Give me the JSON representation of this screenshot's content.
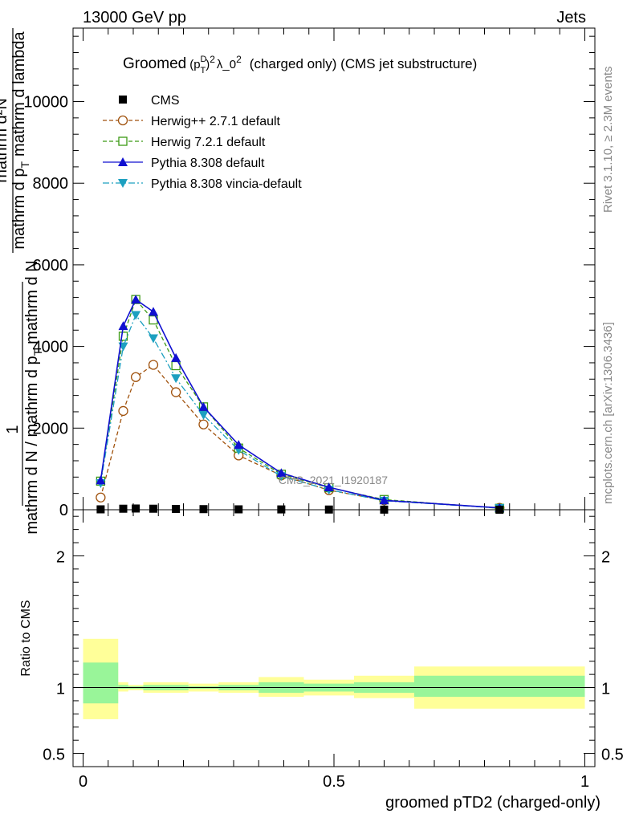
{
  "header": {
    "left": "13000 GeV pp",
    "right": "Jets"
  },
  "side": {
    "rivet": "Rivet 3.1.10, ≥ 2.3M events",
    "mcplots": "mcplots.cern.ch [arXiv:1306.3436]"
  },
  "main": {
    "title_prefix": "Groomed",
    "title_p": "p",
    "title_D": "D",
    "title_T": "T",
    "title_exp": "2",
    "title_rest": "λ_0",
    "title_rest_exp": "2",
    "title_suffix": "(charged only) (CMS jet substructure)",
    "watermark": "CMS_2021_I1920187",
    "ylabel_one": "1",
    "ylabel_den1": "mathrm d N / mathrm d p",
    "ylabel_den1_sub": "T",
    "ylabel_den2": "mathrm d N",
    "ylabel_num": "mathrm d²N",
    "ylabel_num2": "mathrm d p",
    "ylabel_num2_sub": "T",
    "ylabel_num3": "mathrm d lambda"
  },
  "ratio": {
    "ylabel": "Ratio to CMS"
  },
  "xaxis_label": "groomed pTD2 (charged-only)",
  "legend": [
    {
      "name": "CMS",
      "color": "#000000",
      "marker": "square-filled",
      "style": "none"
    },
    {
      "name": "Herwig++ 2.7.1 default",
      "color": "#a0520d",
      "marker": "circle-open",
      "style": "dashed"
    },
    {
      "name": "Herwig 7.2.1 default",
      "color": "#3c9a14",
      "marker": "square-open",
      "style": "dashed"
    },
    {
      "name": "Pythia 8.308 default",
      "color": "#1010d0",
      "marker": "triangle-up",
      "style": "solid"
    },
    {
      "name": "Pythia 8.308 vincia-default",
      "color": "#1da0c0",
      "marker": "triangle-down",
      "style": "dashdot"
    }
  ],
  "chart_data": {
    "type": "line",
    "x": [
      0.035,
      0.08,
      0.105,
      0.14,
      0.185,
      0.24,
      0.31,
      0.395,
      0.49,
      0.6,
      0.83
    ],
    "xlim": [
      -0.02,
      1.02
    ],
    "xticks": [
      0,
      0.5,
      1
    ],
    "xtick_labels": [
      "0",
      "0.5",
      "1"
    ],
    "main_ylim": [
      0,
      11800
    ],
    "main_yticks": [
      0,
      2000,
      4000,
      6000,
      8000,
      10000
    ],
    "main_ytick_labels": [
      "0",
      "2000",
      "4000",
      "6000",
      "8000",
      "10000"
    ],
    "series": [
      {
        "name": "CMS",
        "values": [
          10,
          25,
          30,
          25,
          20,
          15,
          10,
          8,
          5,
          3,
          1
        ]
      },
      {
        "name": "Herwig++ 2.7.1 default",
        "values": [
          300,
          2420,
          3250,
          3550,
          2880,
          2090,
          1330,
          840,
          480,
          230,
          45
        ]
      },
      {
        "name": "Herwig 7.2.1 default",
        "values": [
          700,
          4250,
          5150,
          4650,
          3530,
          2520,
          1510,
          870,
          540,
          250,
          35
        ]
      },
      {
        "name": "Pythia 8.308 default",
        "values": [
          720,
          4500,
          5150,
          4850,
          3720,
          2520,
          1590,
          900,
          550,
          230,
          45
        ]
      },
      {
        "name": "Pythia 8.308 vincia-default",
        "values": [
          650,
          4000,
          4770,
          4200,
          3220,
          2320,
          1460,
          820,
          490,
          220,
          40
        ]
      }
    ],
    "ratio_ylim": [
      0.4,
      2.35
    ],
    "ratio_yticks": [
      0.5,
      1,
      2
    ],
    "ratio_ytick_labels": [
      "0.5",
      "1",
      "2"
    ],
    "ratio_bands": [
      {
        "x0": 0.0,
        "x1": 0.07,
        "stat_lo": 0.88,
        "stat_hi": 1.19,
        "tot_lo": 0.76,
        "tot_hi": 1.37
      },
      {
        "x0": 0.07,
        "x1": 0.09,
        "stat_lo": 0.99,
        "stat_hi": 1.02,
        "tot_lo": 0.97,
        "tot_hi": 1.04
      },
      {
        "x0": 0.09,
        "x1": 0.12,
        "stat_lo": 0.99,
        "stat_hi": 1.01,
        "tot_lo": 0.98,
        "tot_hi": 1.02
      },
      {
        "x0": 0.12,
        "x1": 0.16,
        "stat_lo": 0.98,
        "stat_hi": 1.02,
        "tot_lo": 0.96,
        "tot_hi": 1.04
      },
      {
        "x0": 0.16,
        "x1": 0.21,
        "stat_lo": 0.98,
        "stat_hi": 1.02,
        "tot_lo": 0.96,
        "tot_hi": 1.04
      },
      {
        "x0": 0.21,
        "x1": 0.27,
        "stat_lo": 0.99,
        "stat_hi": 1.01,
        "tot_lo": 0.97,
        "tot_hi": 1.03
      },
      {
        "x0": 0.27,
        "x1": 0.35,
        "stat_lo": 0.98,
        "stat_hi": 1.02,
        "tot_lo": 0.96,
        "tot_hi": 1.04
      },
      {
        "x0": 0.35,
        "x1": 0.44,
        "stat_lo": 0.96,
        "stat_hi": 1.04,
        "tot_lo": 0.93,
        "tot_hi": 1.08
      },
      {
        "x0": 0.44,
        "x1": 0.54,
        "stat_lo": 0.97,
        "stat_hi": 1.03,
        "tot_lo": 0.94,
        "tot_hi": 1.06
      },
      {
        "x0": 0.54,
        "x1": 0.66,
        "stat_lo": 0.96,
        "stat_hi": 1.04,
        "tot_lo": 0.92,
        "tot_hi": 1.09
      },
      {
        "x0": 0.66,
        "x1": 1.0,
        "stat_lo": 0.93,
        "stat_hi": 1.09,
        "tot_lo": 0.84,
        "tot_hi": 1.16
      }
    ],
    "colors": {
      "stat_band": "#99f599",
      "total_band": "#ffff99"
    }
  }
}
